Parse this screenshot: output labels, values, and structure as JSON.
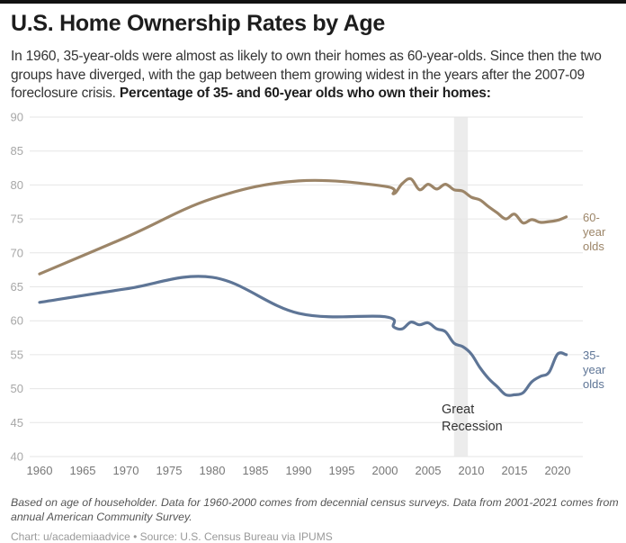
{
  "title": "U.S. Home Ownership Rates by Age",
  "subtitle_plain": "In 1960, 35-year-olds were almost as likely to own their homes as 60-year-olds. Since then the two groups have diverged, with the gap between them growing widest in the years after the 2007-09 foreclosure crisis.",
  "subtitle_bold": "Percentage of 35- and 60-year olds who own their homes:",
  "notes": "Based on age of householder. Data for 1960-2000 comes from decennial census surveys. Data from 2001-2021 comes from annual American Community Survey.",
  "credit": "Chart: u/academiaadvice • Source: U.S. Census Bureau via IPUMS",
  "chart_data": {
    "type": "line",
    "title": "U.S. Home Ownership Rates by Age",
    "xlabel": "",
    "ylabel": "",
    "xlim": [
      1960,
      2021
    ],
    "ylim": [
      40,
      90
    ],
    "grid": true,
    "y_ticks": [
      90,
      85,
      80,
      75,
      70,
      65,
      60,
      55,
      50,
      45,
      40
    ],
    "x_ticks": [
      1960,
      1965,
      1970,
      1975,
      1980,
      1985,
      1990,
      1995,
      2000,
      2005,
      2010,
      2015,
      2020
    ],
    "shaded_region": {
      "x": [
        2008,
        2009.6
      ],
      "label": [
        "Great",
        "Recession"
      ],
      "color": "#ececec"
    },
    "series": [
      {
        "name": "60-year olds",
        "label": [
          "60-",
          "year",
          "olds"
        ],
        "color": "#9c8568",
        "x": [
          1960,
          1970,
          1980,
          1990,
          2000,
          2001,
          2002,
          2003,
          2004,
          2005,
          2006,
          2007,
          2008,
          2009,
          2010,
          2011,
          2012,
          2013,
          2014,
          2015,
          2016,
          2017,
          2018,
          2019,
          2020,
          2021
        ],
        "values": [
          66.9,
          72.3,
          78.0,
          80.6,
          79.8,
          78.7,
          80.2,
          80.9,
          79.3,
          80.1,
          79.4,
          80.1,
          79.3,
          79.1,
          78.2,
          77.8,
          76.8,
          75.9,
          75.0,
          75.7,
          74.4,
          74.9,
          74.5,
          74.6,
          74.8,
          75.3
        ]
      },
      {
        "name": "35-year olds",
        "label": [
          "35-",
          "year",
          "olds"
        ],
        "color": "#5e7596",
        "x": [
          1960,
          1970,
          1980,
          1990,
          2000,
          2001,
          2002,
          2003,
          2004,
          2005,
          2006,
          2007,
          2008,
          2009,
          2010,
          2011,
          2012,
          2013,
          2014,
          2015,
          2016,
          2017,
          2018,
          2019,
          2020,
          2021
        ],
        "values": [
          62.7,
          64.7,
          66.4,
          61.1,
          60.6,
          59.1,
          58.8,
          59.8,
          59.4,
          59.7,
          58.8,
          58.4,
          56.7,
          56.2,
          55.1,
          53.1,
          51.5,
          50.3,
          49.1,
          49.1,
          49.4,
          51.0,
          51.8,
          52.4,
          55.1,
          55.0
        ]
      }
    ]
  }
}
